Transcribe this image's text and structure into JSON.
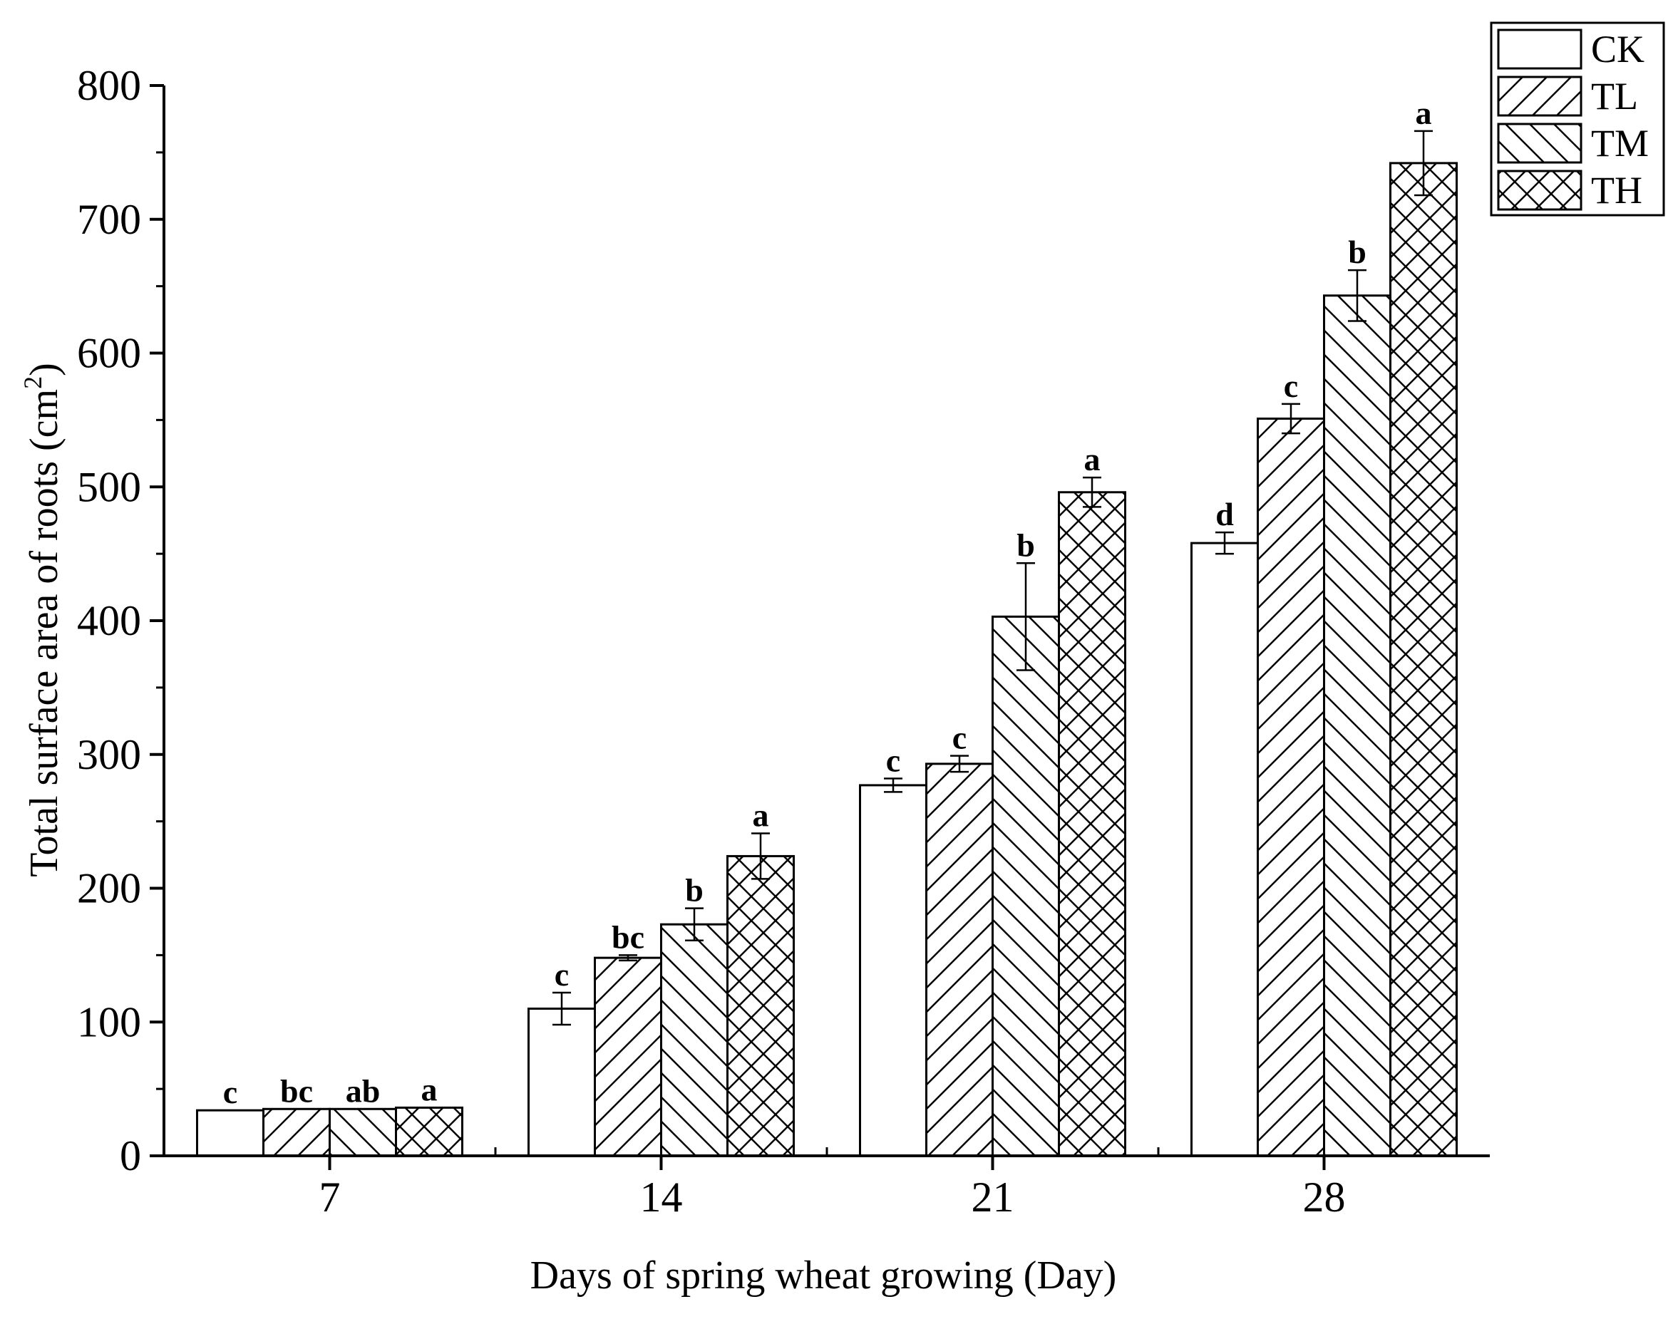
{
  "chart_data": {
    "type": "bar",
    "title": "",
    "xlabel": "Days of spring wheat growing (Day)",
    "ylabel_text": "Total surface area of roots (cm",
    "ylabel_sup": "2",
    "ylabel_close": ")",
    "ylim": [
      0,
      800
    ],
    "yticks": [
      0,
      100,
      200,
      300,
      400,
      500,
      600,
      700,
      800
    ],
    "yticks_labels": [
      "0",
      "100",
      "200",
      "300",
      "400",
      "500",
      "600",
      "700",
      "800"
    ],
    "categories": [
      "7",
      "14",
      "21",
      "28"
    ],
    "legend_position": "top-right",
    "series": [
      {
        "name": "CK",
        "pattern": "none",
        "values": [
          34,
          110,
          277,
          458
        ],
        "errors": [
          0,
          12,
          5,
          8
        ],
        "labels": [
          "c",
          "c",
          "c",
          "d"
        ]
      },
      {
        "name": "TL",
        "pattern": "forward-diagonal",
        "values": [
          35,
          148,
          293,
          551
        ],
        "errors": [
          0,
          2,
          6,
          11
        ],
        "labels": [
          "bc",
          "bc",
          "c",
          "c"
        ]
      },
      {
        "name": "TM",
        "pattern": "backward-diagonal",
        "values": [
          35,
          173,
          403,
          643
        ],
        "errors": [
          0,
          12,
          40,
          19
        ],
        "labels": [
          "ab",
          "b",
          "b",
          "b"
        ]
      },
      {
        "name": "TH",
        "pattern": "crosshatch",
        "values": [
          36,
          224,
          496,
          742
        ],
        "errors": [
          0,
          17,
          11,
          24
        ],
        "labels": [
          "a",
          "a",
          "a",
          "a"
        ]
      }
    ],
    "colors": {
      "stroke": "#000000",
      "fill": "#ffffff",
      "background": "#ffffff"
    }
  }
}
